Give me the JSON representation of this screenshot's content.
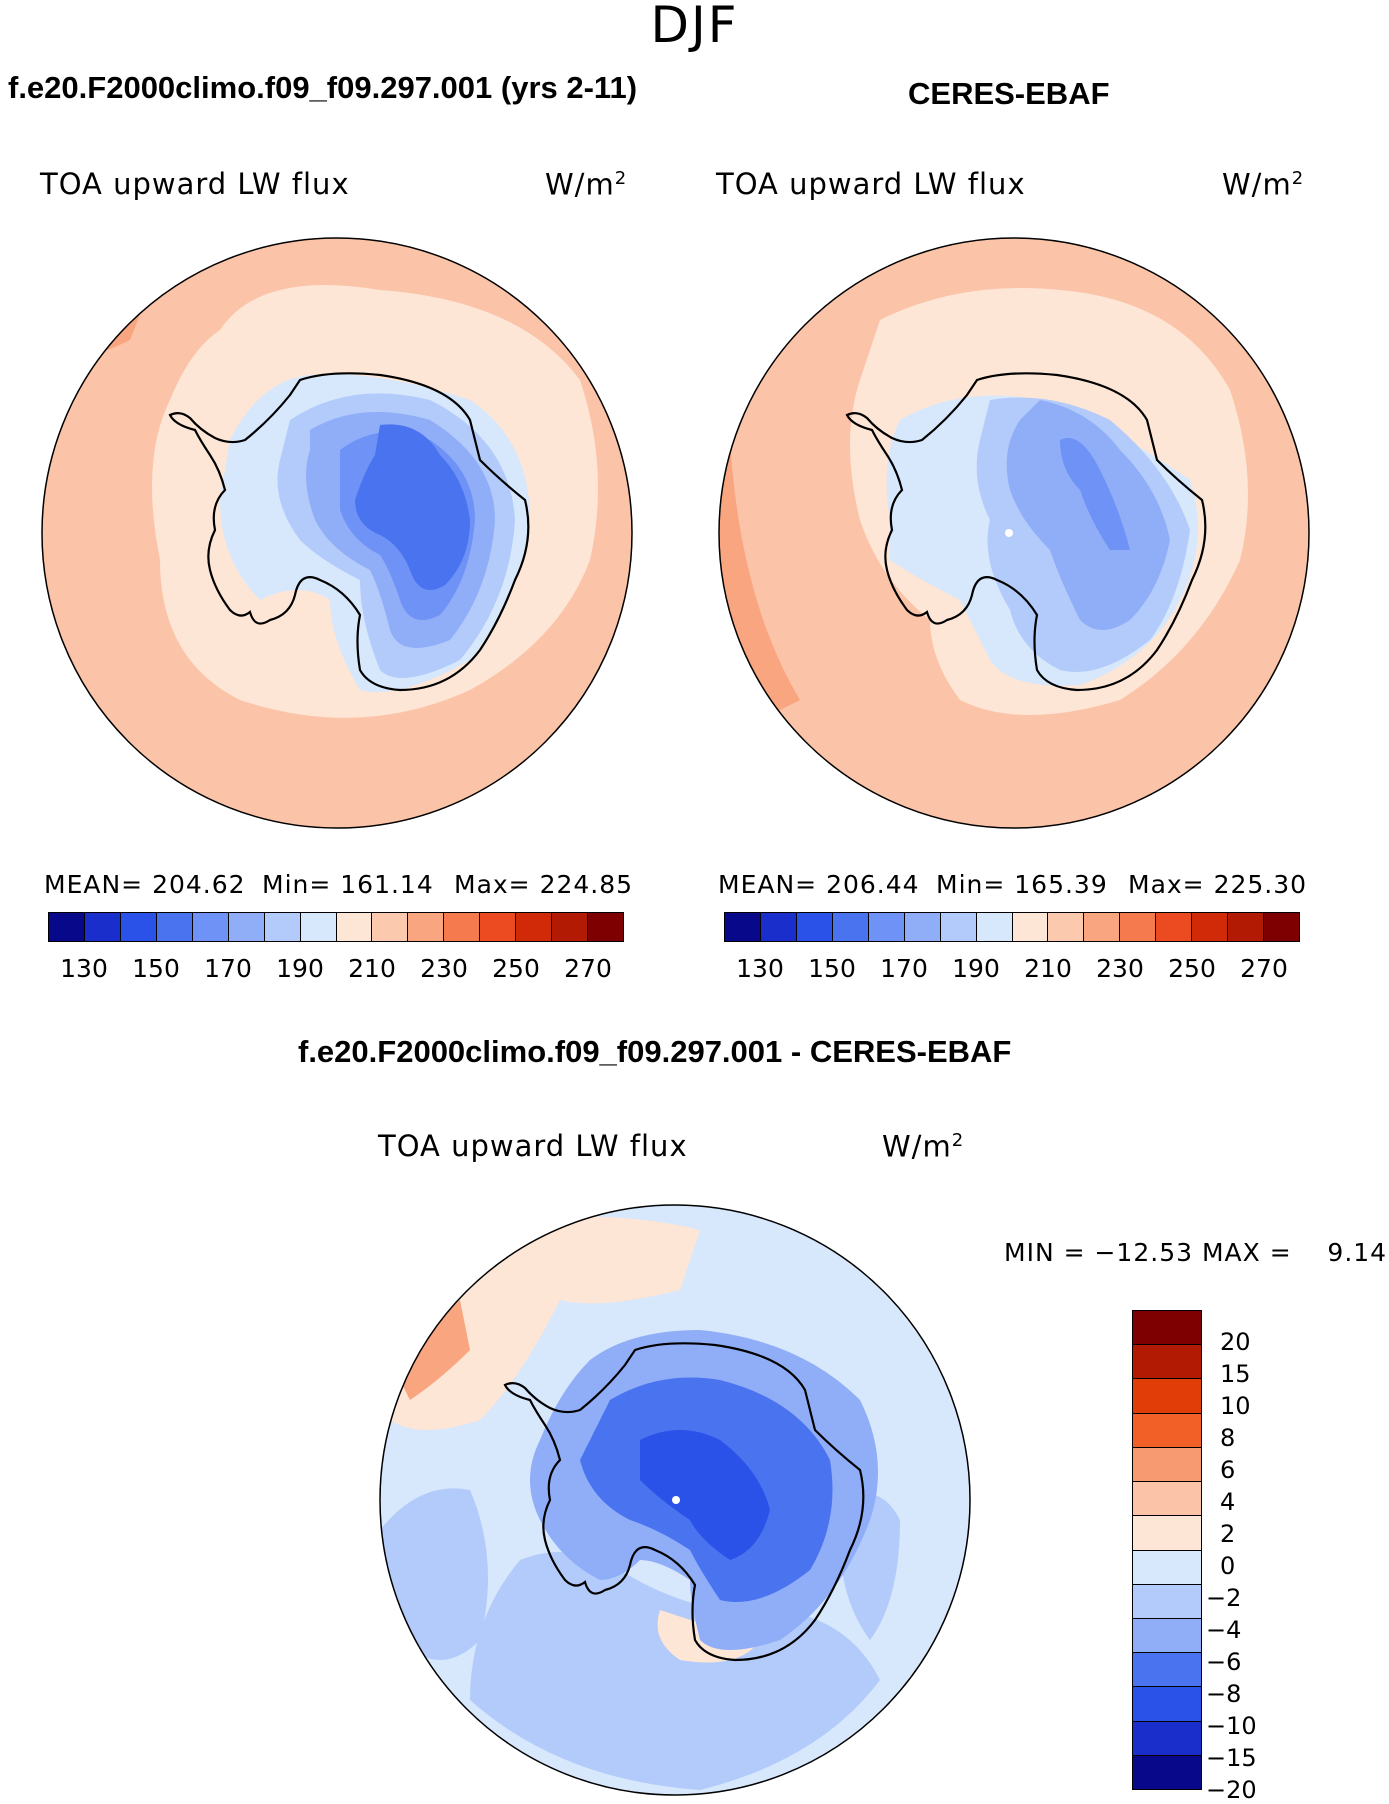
{
  "season": "DJF",
  "panels": {
    "model": {
      "title": "f.e20.F2000climo.f09_f09.297.001 (yrs 2-11)",
      "variable": "TOA upward LW flux",
      "units": "W/m",
      "units_sup": "2",
      "mean_label": "MEAN= 204.62",
      "min_label": "Min= 161.14",
      "max_label": "Max= 224.85"
    },
    "obs": {
      "title": "CERES-EBAF",
      "variable": "TOA upward LW flux",
      "units": "W/m",
      "units_sup": "2",
      "mean_label": "MEAN= 206.44",
      "min_label": "Min= 165.39",
      "max_label": "Max= 225.30"
    },
    "diff": {
      "title": "f.e20.F2000climo.f09_f09.297.001 - CERES-EBAF",
      "variable": "TOA upward LW flux",
      "units": "W/m",
      "units_sup": "2",
      "minmax_label": "MIN = −12.53 MAX =    9.14"
    }
  },
  "abs_colorbar": {
    "colors": [
      "#08088a",
      "#1a2ecc",
      "#2b52e8",
      "#4a73f0",
      "#6e92f5",
      "#90aef8",
      "#b3cbfa",
      "#d7e7fc",
      "#fde6d6",
      "#fbc9ae",
      "#f9a580",
      "#f57a4e",
      "#ec4a20",
      "#d02a08",
      "#b31a04",
      "#7f0000"
    ],
    "ticks": [
      "130",
      "150",
      "170",
      "190",
      "210",
      "230",
      "250",
      "270"
    ],
    "tick_fracs": [
      0.0625,
      0.1875,
      0.3125,
      0.4375,
      0.5625,
      0.6875,
      0.8125,
      0.9375
    ]
  },
  "diff_colorbar": {
    "colors": [
      "#7f0000",
      "#b31a04",
      "#e03d08",
      "#f26028",
      "#f79a72",
      "#fbc4a8",
      "#fde6d6",
      "#d7e7fc",
      "#b3cbfa",
      "#90aef8",
      "#4a73f0",
      "#2b52e8",
      "#1a2ecc",
      "#08088a"
    ],
    "ticks": [
      "20",
      "15",
      "10",
      "8",
      "6",
      "4",
      "2",
      "0",
      "−2",
      "−4",
      "−6",
      "−8",
      "−10",
      "−15",
      "−20"
    ]
  },
  "icons": [
    "antarctica-coastline",
    "polar-stereographic-disk"
  ]
}
